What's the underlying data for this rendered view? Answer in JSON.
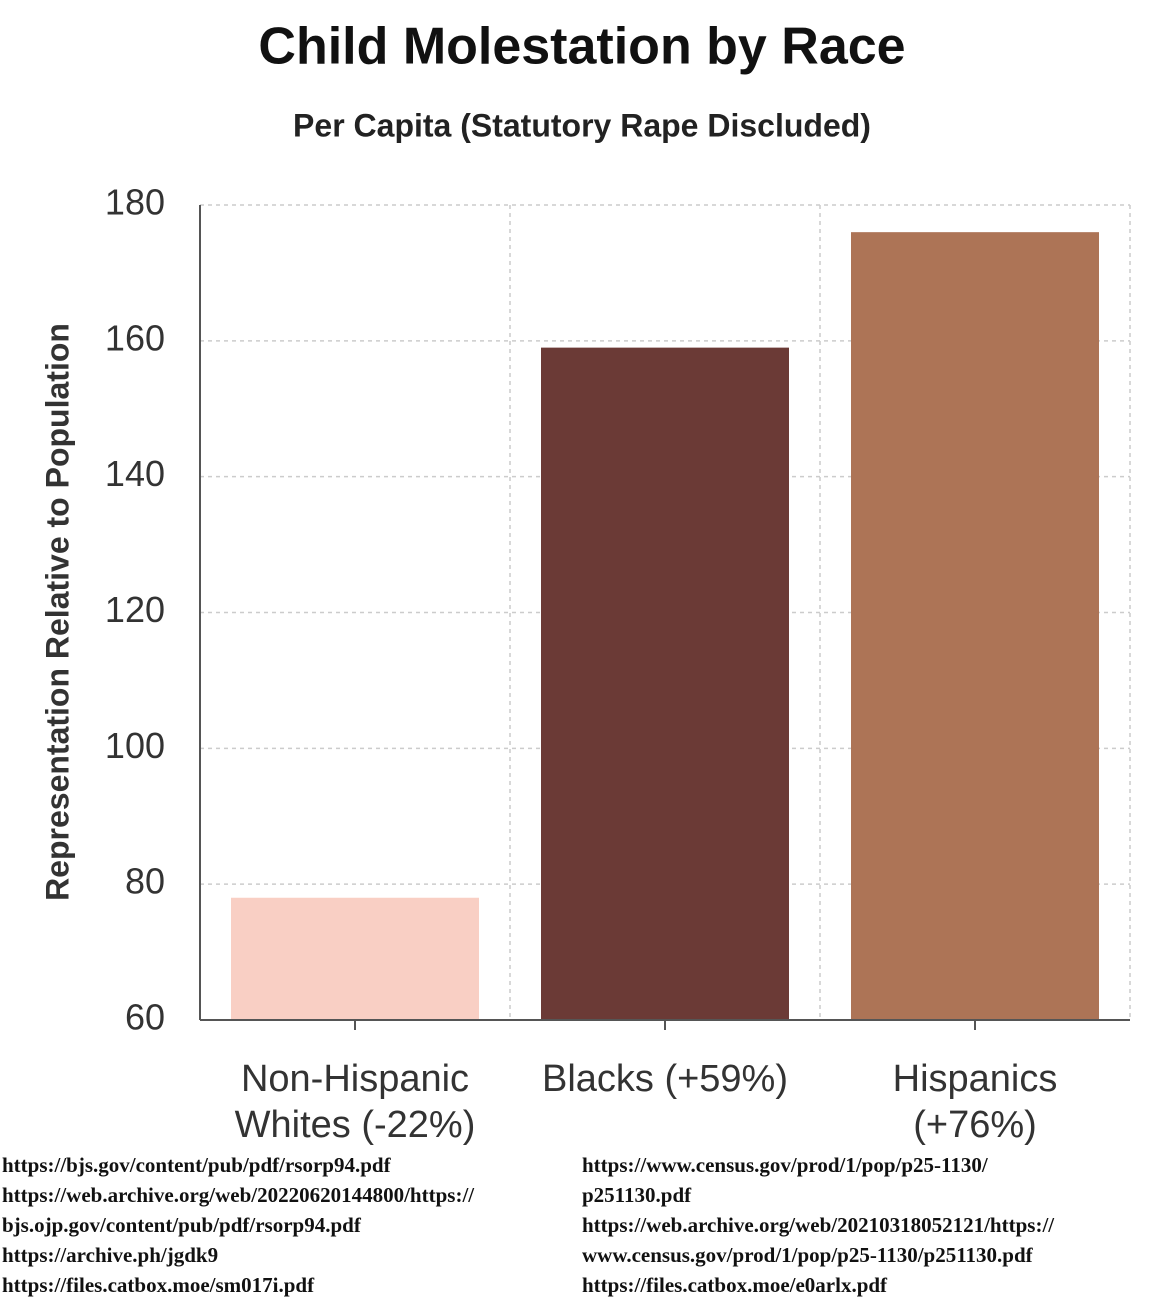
{
  "chart_data": {
    "type": "bar",
    "title": "Child Molestation by Race",
    "subtitle": "Per Capita (Statutory Rape Discluded)",
    "y_label": "Representation Relative to Population",
    "categories": [
      "Non-Hispanic\nWhites (-22%)",
      "Blacks (+59%)",
      "Hispanics\n(+76%)"
    ],
    "values": [
      78,
      159,
      176
    ],
    "colors": [
      "#f9cfc4",
      "#6b3a36",
      "#ad7456"
    ],
    "ylim": [
      60,
      180
    ],
    "yticks": [
      60,
      80,
      100,
      120,
      140,
      160,
      180
    ],
    "grid": true
  },
  "sources": {
    "left": [
      "https://bjs.gov/content/pub/pdf/rsorp94.pdf",
      "https://web.archive.org/web/20220620144800/https://",
      "bjs.ojp.gov/content/pub/pdf/rsorp94.pdf",
      "https://archive.ph/jgdk9",
      "https://files.catbox.moe/sm017i.pdf"
    ],
    "right": [
      "https://www.census.gov/prod/1/pop/p25-1130/",
      "p251130.pdf",
      "https://web.archive.org/web/20210318052121/https://",
      "www.census.gov/prod/1/pop/p25-1130/p251130.pdf",
      "https://files.catbox.moe/e0arlx.pdf"
    ]
  }
}
